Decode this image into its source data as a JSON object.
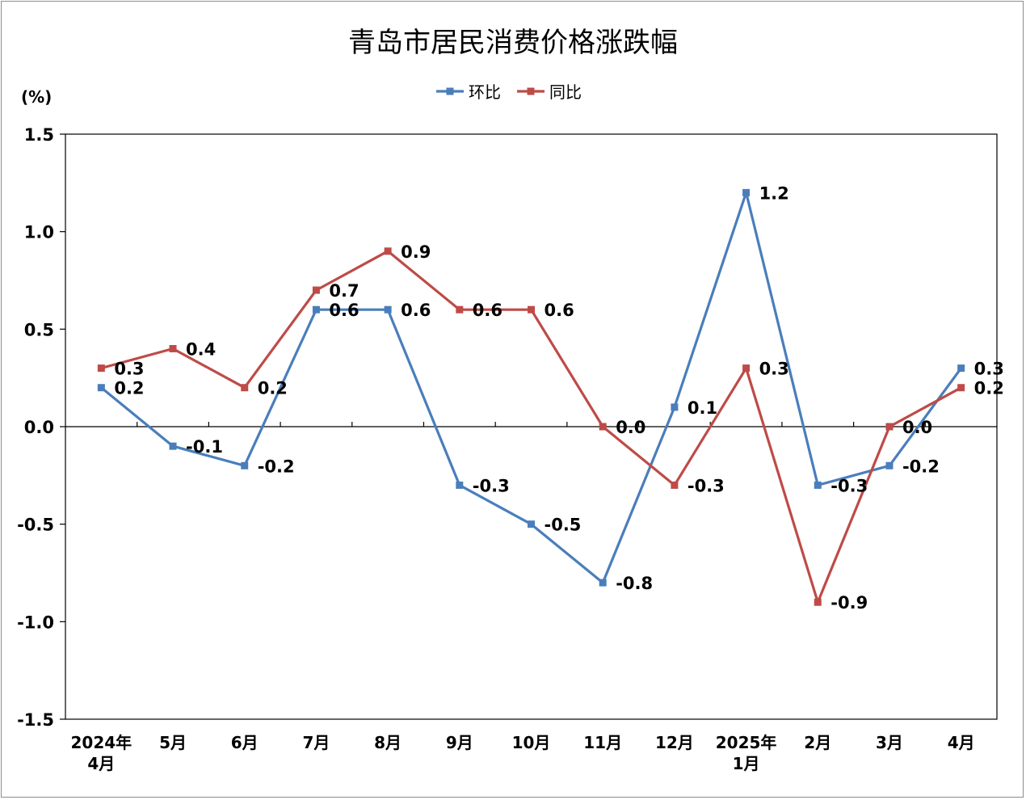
{
  "chart_data": {
    "type": "line",
    "title": "青岛市居民消费价格涨跌幅",
    "unit_label": "(%)",
    "categories": [
      [
        "2024年",
        "4月"
      ],
      [
        "5月"
      ],
      [
        "6月"
      ],
      [
        "7月"
      ],
      [
        "8月"
      ],
      [
        "9月"
      ],
      [
        "10月"
      ],
      [
        "11月"
      ],
      [
        "12月"
      ],
      [
        "2025年",
        "1月"
      ],
      [
        "2月"
      ],
      [
        "3月"
      ],
      [
        "4月"
      ]
    ],
    "ylim": [
      -1.5,
      1.5
    ],
    "yticks": [
      "1.5",
      "1.0",
      "0.5",
      "0.0",
      "-0.5",
      "-1.0",
      "-1.5"
    ],
    "ytick_values": [
      1.5,
      1.0,
      0.5,
      0.0,
      -0.5,
      -1.0,
      -1.5
    ],
    "legend_position": "top-center",
    "grid": false,
    "series": [
      {
        "name": "环比",
        "color": "#4a7ebb",
        "values": [
          0.2,
          -0.1,
          -0.2,
          0.6,
          0.6,
          -0.3,
          -0.5,
          -0.8,
          0.1,
          1.2,
          -0.3,
          -0.2,
          0.3
        ],
        "labels": [
          "0.2",
          "-0.1",
          "-0.2",
          "0.6",
          "0.6",
          "-0.3",
          "-0.5",
          "-0.8",
          "0.1",
          "1.2",
          "-0.3",
          "-0.2",
          "0.3"
        ]
      },
      {
        "name": "同比",
        "color": "#be4b48",
        "values": [
          0.3,
          0.4,
          0.2,
          0.7,
          0.9,
          0.6,
          0.6,
          0.0,
          -0.3,
          0.3,
          -0.9,
          0.0,
          0.2
        ],
        "labels": [
          "0.3",
          "0.4",
          "0.2",
          "0.7",
          "0.9",
          "0.6",
          "0.6",
          "0.0",
          "-0.3",
          "0.3",
          "-0.9",
          "0.0",
          "0.2"
        ]
      }
    ]
  }
}
